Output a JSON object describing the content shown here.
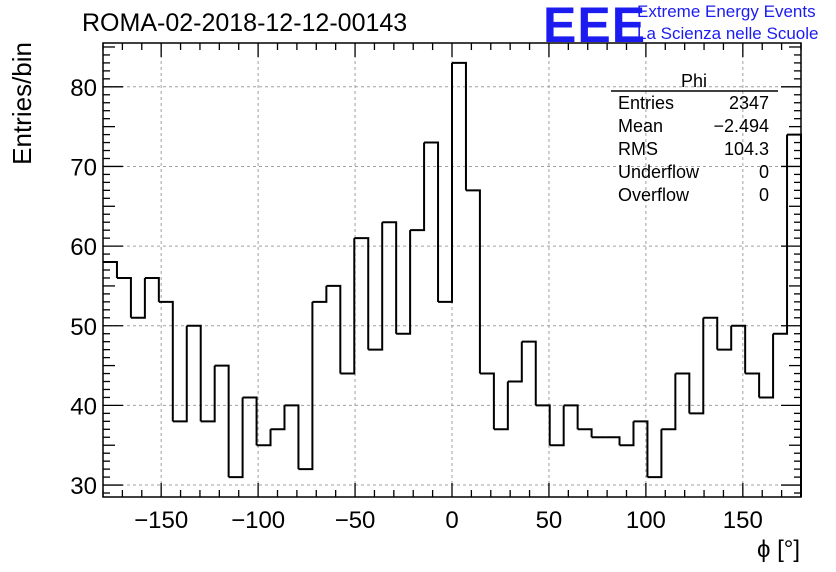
{
  "header": {
    "run_title": "ROMA-02-2018-12-12-00143",
    "logo_text": "EEE",
    "logo_line1": "Extreme Energy Events",
    "logo_line2": "La Scienza nelle Scuole",
    "logo_color": "#1c1cf0"
  },
  "chart_data": {
    "type": "bar",
    "histogram_style": "step",
    "title": "ROMA-02-2018-12-12-00143",
    "xlabel": "ϕ [°]",
    "ylabel": "Entries/bin",
    "xlim": [
      -180,
      180
    ],
    "ylim": [
      28.5,
      85.5
    ],
    "grid": true,
    "bin_edges_start": -180,
    "bin_width": 7.2,
    "values": [
      58,
      56,
      51,
      56,
      53,
      38,
      50,
      38,
      45,
      31,
      41,
      35,
      37,
      40,
      32,
      53,
      55,
      44,
      61,
      47,
      63,
      49,
      62,
      73,
      53,
      83,
      67,
      44,
      37,
      43,
      48,
      40,
      35,
      40,
      37,
      36,
      36,
      35,
      38,
      31,
      37,
      44,
      39,
      51,
      47,
      50,
      44,
      41,
      49,
      74
    ],
    "x_ticks": [
      -150,
      -100,
      -50,
      0,
      50,
      100,
      150
    ],
    "x_tick_labels": [
      "−150",
      "−100",
      "−50",
      "0",
      "50",
      "100",
      "150"
    ],
    "y_ticks": [
      30,
      40,
      50,
      60,
      70,
      80
    ],
    "y_tick_labels": [
      "30",
      "40",
      "50",
      "60",
      "70",
      "80"
    ],
    "stats_box": {
      "name": "Phi",
      "rows": [
        {
          "label": "Entries",
          "value": "2347"
        },
        {
          "label": "Mean",
          "value": "−2.494"
        },
        {
          "label": "RMS",
          "value": "104.3"
        },
        {
          "label": "Underflow",
          "value": "0"
        },
        {
          "label": "Overflow",
          "value": "0"
        }
      ],
      "placement": "top-right"
    }
  }
}
